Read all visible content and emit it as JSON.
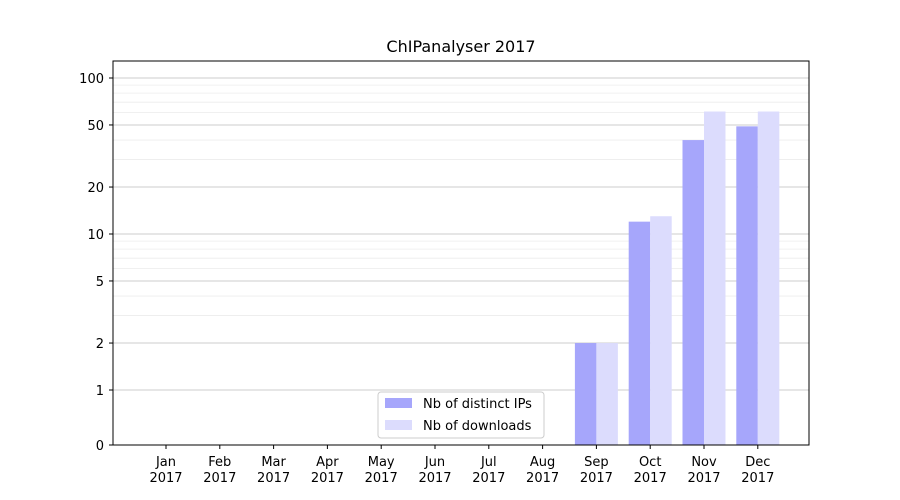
{
  "chart_data": {
    "type": "bar",
    "title": "ChIPanalyser 2017",
    "xlabel": "",
    "ylabel": "",
    "yscale": "symlog",
    "ylim": [
      0,
      120
    ],
    "yticks": [
      0,
      1,
      2,
      5,
      10,
      20,
      50,
      100
    ],
    "grid": "y (major and minor)",
    "legend_placement": "lower-center",
    "categories": [
      [
        "Jan",
        "2017"
      ],
      [
        "Feb",
        "2017"
      ],
      [
        "Mar",
        "2017"
      ],
      [
        "Apr",
        "2017"
      ],
      [
        "May",
        "2017"
      ],
      [
        "Jun",
        "2017"
      ],
      [
        "Jul",
        "2017"
      ],
      [
        "Aug",
        "2017"
      ],
      [
        "Sep",
        "2017"
      ],
      [
        "Oct",
        "2017"
      ],
      [
        "Nov",
        "2017"
      ],
      [
        "Dec",
        "2017"
      ]
    ],
    "series": [
      {
        "name": "Nb of distinct IPs",
        "color": "#a6a6fb",
        "values": [
          0,
          0,
          0,
          0,
          0,
          0,
          0,
          0,
          2,
          12,
          40,
          49
        ]
      },
      {
        "name": "Nb of downloads",
        "color": "#dcdcfd",
        "values": [
          0,
          0,
          0,
          0,
          0,
          0,
          0,
          0,
          2,
          13,
          61,
          61
        ]
      }
    ]
  }
}
